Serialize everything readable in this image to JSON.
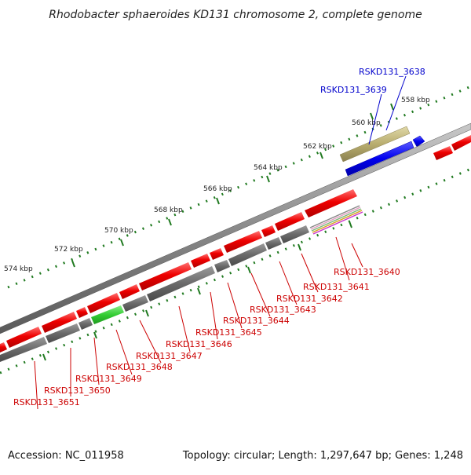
{
  "title": "Rhodobacter sphaeroides KD131 chromosome 2, complete genome",
  "accession_text": "Accession: NC_011958",
  "topology_text": "Topology: circular; Length: 1,297,647 bp; Genes: 1,248",
  "ticks": [
    "558 kbp",
    "560 kbp",
    "562 kbp",
    "564 kbp",
    "566 kbp",
    "568 kbp",
    "570 kbp",
    "572 kbp",
    "574 kbp"
  ],
  "genes": [
    {
      "label": "RSKD131_3638",
      "color": "#0000cc"
    },
    {
      "label": "RSKD131_3639",
      "color": "#0000cc"
    },
    {
      "label": "RSKD131_3640",
      "color": "#cc0000"
    },
    {
      "label": "RSKD131_3641",
      "color": "#cc0000"
    },
    {
      "label": "RSKD131_3642",
      "color": "#cc0000"
    },
    {
      "label": "RSKD131_3643",
      "color": "#cc0000"
    },
    {
      "label": "RSKD131_3644",
      "color": "#cc0000"
    },
    {
      "label": "RSKD131_3645",
      "color": "#cc0000"
    },
    {
      "label": "RSKD131_3646",
      "color": "#cc0000"
    },
    {
      "label": "RSKD131_3647",
      "color": "#cc0000"
    },
    {
      "label": "RSKD131_3648",
      "color": "#cc0000"
    },
    {
      "label": "RSKD131_3649",
      "color": "#cc0000"
    },
    {
      "label": "RSKD131_3650",
      "color": "#cc0000"
    },
    {
      "label": "RSKD131_3651",
      "color": "#cc0000"
    }
  ],
  "colors": {
    "forward_feature": "#ee0000",
    "backbone": "#888888",
    "reverse_feature": "#666666",
    "highlight_green": "#33cc33",
    "blue_feature": "#0000ee",
    "olive_feature": "#b8ad6e",
    "tick_dots": "#207a20"
  }
}
